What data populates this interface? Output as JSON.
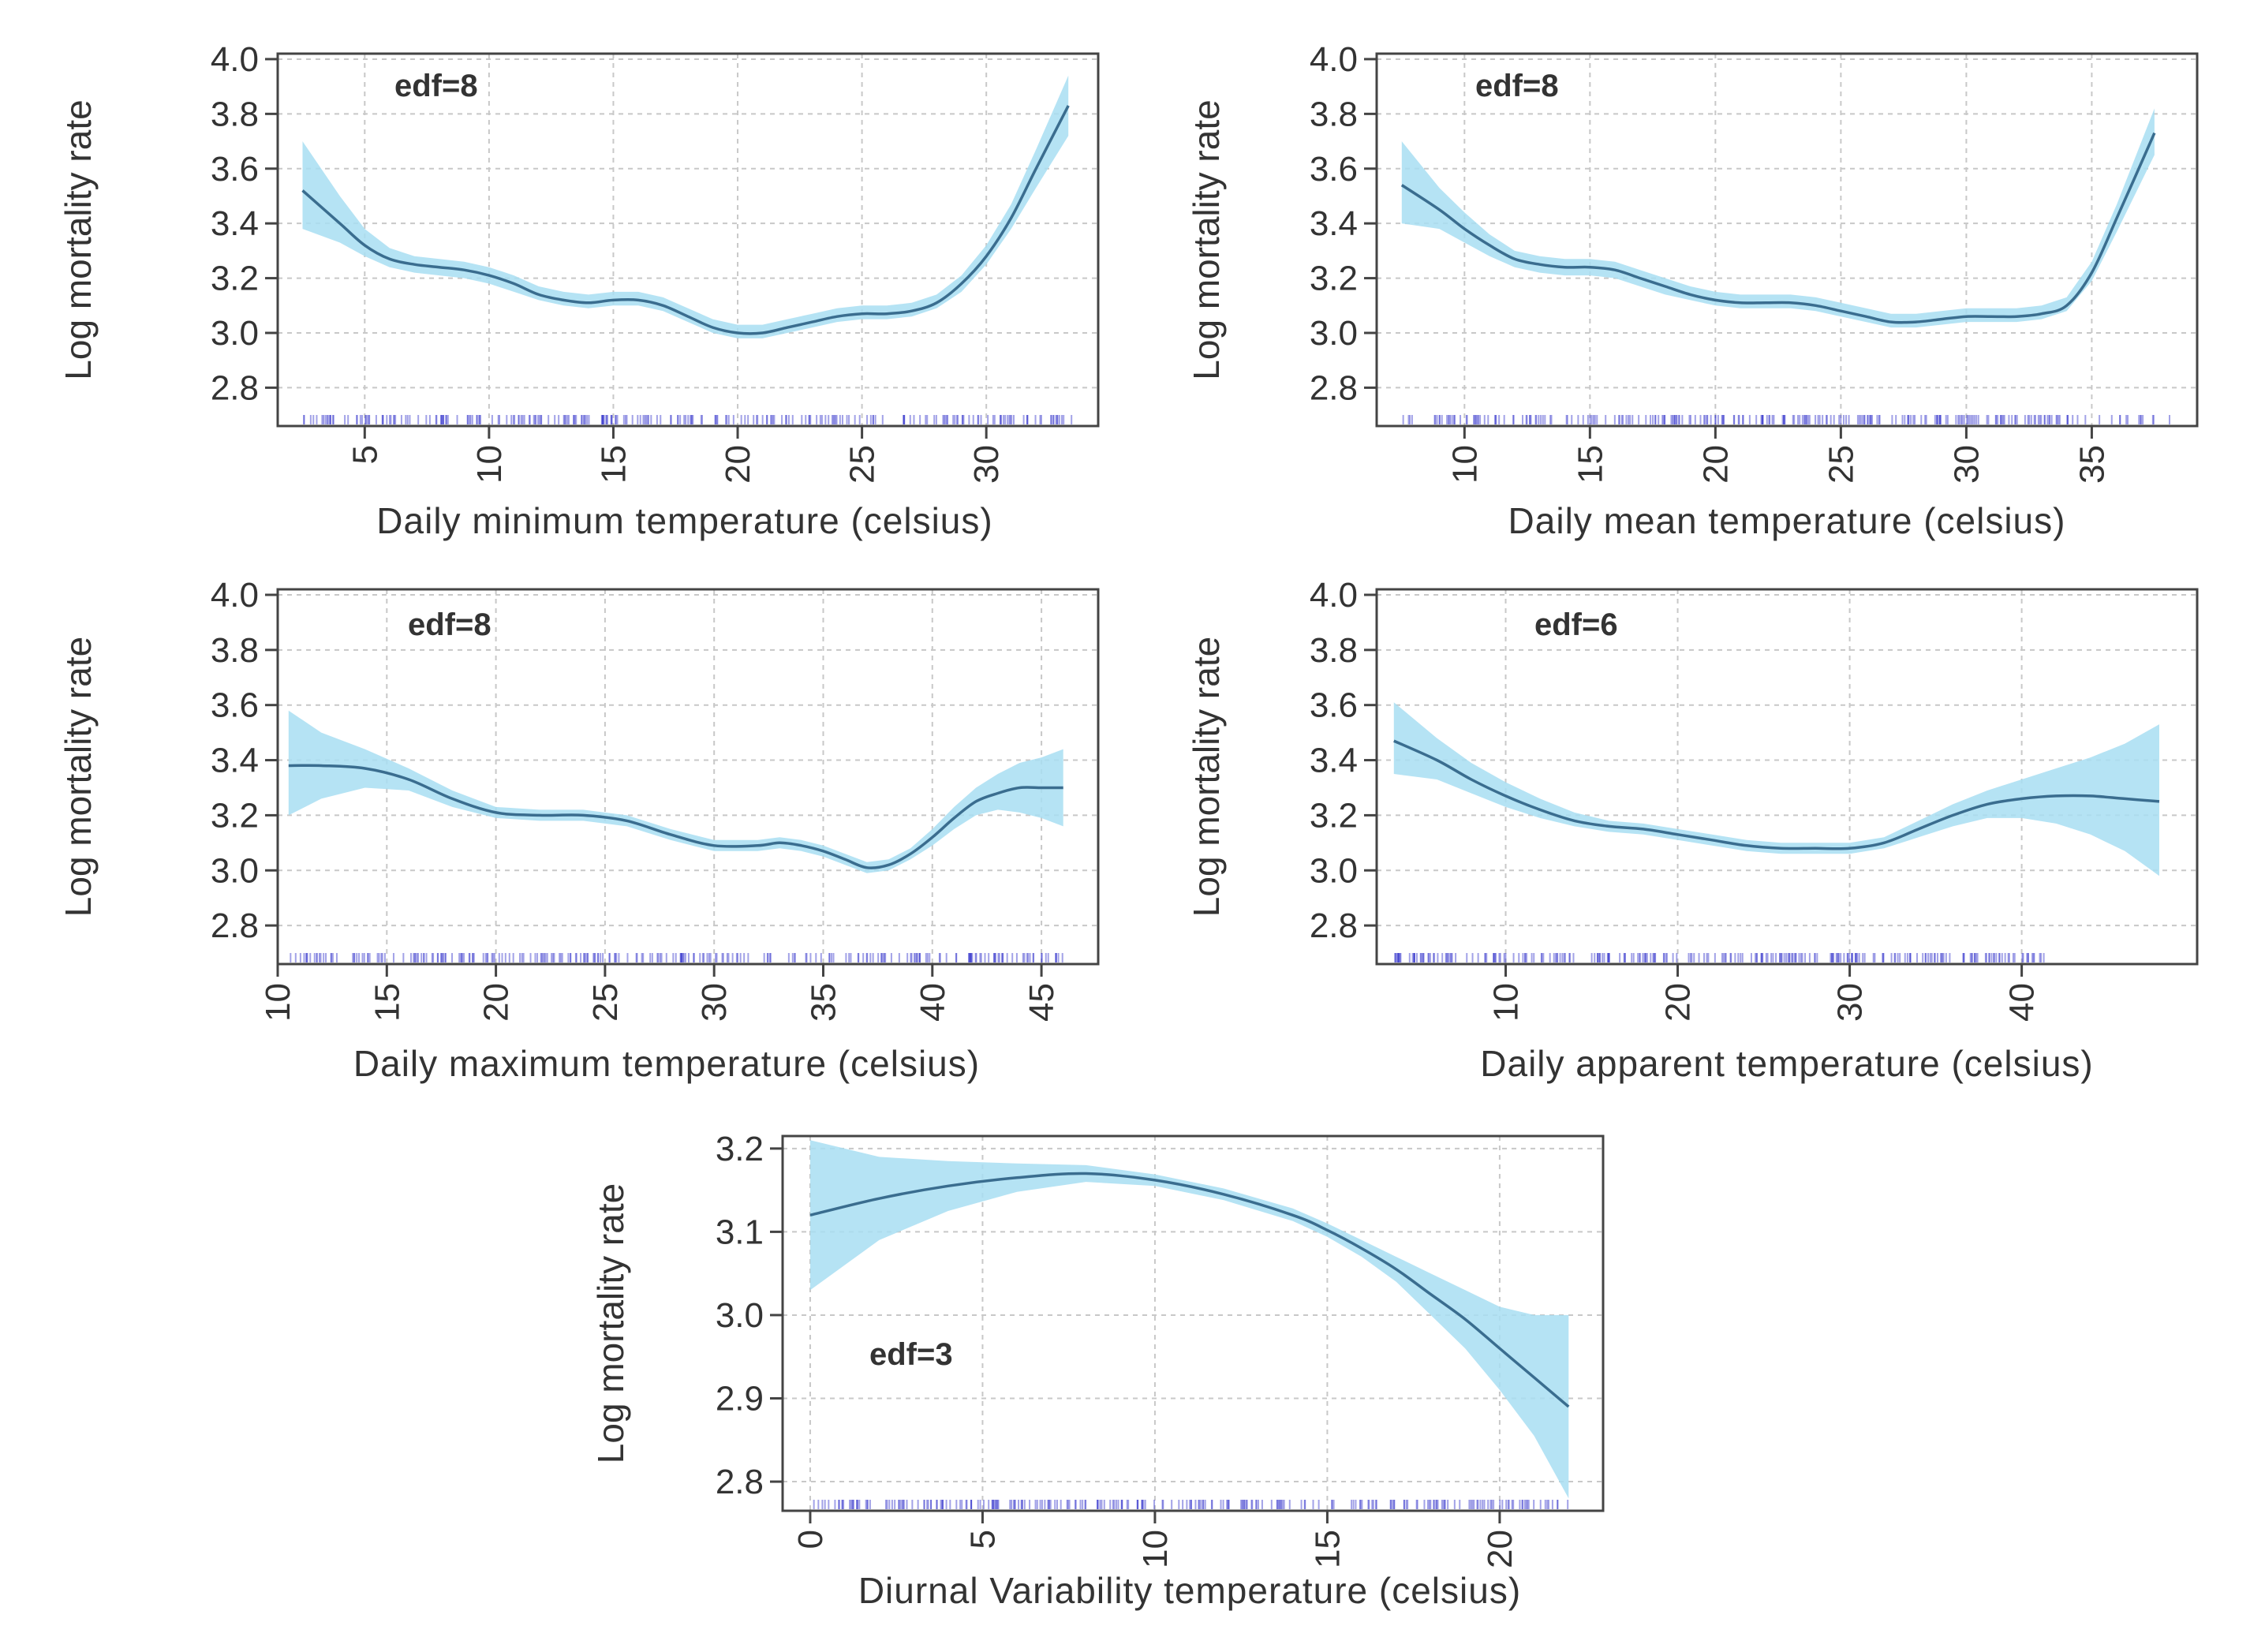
{
  "chart_data": [
    {
      "type": "line",
      "title": "",
      "xlabel": "Daily minimum temperature (celsius)",
      "ylabel": "Log mortality rate",
      "annotation": "edf=8",
      "xlim": [
        1.5,
        34.5
      ],
      "ylim": [
        2.66,
        4.02
      ],
      "xticks": [
        5,
        10,
        15,
        20,
        25,
        30
      ],
      "yticks": [
        2.8,
        3.0,
        3.2,
        3.4,
        3.6,
        3.8,
        4.0
      ],
      "ytick_labels": [
        "2.8",
        "3.0",
        "3.2",
        "3.4",
        "3.6",
        "3.8",
        "4.0"
      ],
      "grid": true,
      "x": [
        2.5,
        4,
        5,
        6,
        7,
        8,
        9,
        10,
        11,
        12,
        13,
        14,
        15,
        16,
        17,
        18,
        19,
        20,
        21,
        22,
        23,
        24,
        25,
        26,
        27,
        28,
        29,
        30,
        31,
        32,
        33.3
      ],
      "y": [
        3.52,
        3.4,
        3.32,
        3.27,
        3.25,
        3.24,
        3.23,
        3.21,
        3.18,
        3.14,
        3.12,
        3.11,
        3.12,
        3.12,
        3.1,
        3.06,
        3.02,
        3.0,
        3.0,
        3.02,
        3.04,
        3.06,
        3.07,
        3.07,
        3.08,
        3.11,
        3.18,
        3.28,
        3.42,
        3.6,
        3.83
      ],
      "lower": [
        3.38,
        3.33,
        3.28,
        3.24,
        3.22,
        3.21,
        3.2,
        3.18,
        3.15,
        3.12,
        3.1,
        3.09,
        3.1,
        3.1,
        3.08,
        3.04,
        3.0,
        2.98,
        2.98,
        3.0,
        3.02,
        3.04,
        3.05,
        3.05,
        3.06,
        3.09,
        3.15,
        3.25,
        3.38,
        3.53,
        3.72
      ],
      "upper": [
        3.7,
        3.5,
        3.38,
        3.31,
        3.28,
        3.27,
        3.26,
        3.24,
        3.21,
        3.17,
        3.15,
        3.14,
        3.15,
        3.15,
        3.13,
        3.09,
        3.05,
        3.03,
        3.03,
        3.05,
        3.07,
        3.09,
        3.1,
        3.1,
        3.11,
        3.14,
        3.21,
        3.32,
        3.47,
        3.67,
        3.94
      ],
      "rug_range": [
        2.5,
        33.5
      ]
    },
    {
      "type": "line",
      "title": "",
      "xlabel": "Daily  mean temperature (celsius)",
      "ylabel": "Log mortality rate",
      "annotation": "edf=8",
      "xlim": [
        6.5,
        39.2
      ],
      "ylim": [
        2.66,
        4.02
      ],
      "xticks": [
        10,
        15,
        20,
        25,
        30,
        35
      ],
      "yticks": [
        2.8,
        3.0,
        3.2,
        3.4,
        3.6,
        3.8,
        4.0
      ],
      "ytick_labels": [
        "2.8",
        "3.0",
        "3.2",
        "3.4",
        "3.6",
        "3.8",
        "4.0"
      ],
      "grid": true,
      "x": [
        7.5,
        9,
        10,
        11,
        12,
        13,
        14,
        15,
        16,
        17,
        18,
        19,
        20,
        21,
        22,
        23,
        24,
        25,
        26,
        27,
        28,
        29,
        30,
        31,
        32,
        33,
        34,
        35,
        36,
        37.5
      ],
      "y": [
        3.54,
        3.45,
        3.38,
        3.32,
        3.27,
        3.25,
        3.24,
        3.24,
        3.23,
        3.2,
        3.17,
        3.14,
        3.12,
        3.11,
        3.11,
        3.11,
        3.1,
        3.08,
        3.06,
        3.04,
        3.04,
        3.05,
        3.06,
        3.06,
        3.06,
        3.07,
        3.1,
        3.22,
        3.42,
        3.73
      ],
      "lower": [
        3.4,
        3.38,
        3.33,
        3.28,
        3.24,
        3.22,
        3.21,
        3.21,
        3.2,
        3.17,
        3.14,
        3.12,
        3.1,
        3.09,
        3.09,
        3.09,
        3.08,
        3.06,
        3.04,
        3.02,
        3.02,
        3.03,
        3.04,
        3.04,
        3.04,
        3.05,
        3.08,
        3.19,
        3.37,
        3.65
      ],
      "upper": [
        3.7,
        3.53,
        3.44,
        3.36,
        3.3,
        3.28,
        3.27,
        3.27,
        3.26,
        3.23,
        3.2,
        3.17,
        3.15,
        3.14,
        3.14,
        3.14,
        3.13,
        3.11,
        3.09,
        3.07,
        3.07,
        3.08,
        3.09,
        3.09,
        3.09,
        3.1,
        3.13,
        3.26,
        3.47,
        3.82
      ],
      "rug_range": [
        7.5,
        38.5
      ]
    },
    {
      "type": "line",
      "title": "",
      "xlabel": "Daily maximum temperature (celsius)",
      "ylabel": "Log mortality rate",
      "annotation": "edf=8",
      "xlim": [
        10.0,
        47.6
      ],
      "ylim": [
        2.66,
        4.02
      ],
      "xticks": [
        10,
        15,
        20,
        25,
        30,
        35,
        40,
        45
      ],
      "yticks": [
        2.8,
        3.0,
        3.2,
        3.4,
        3.6,
        3.8,
        4.0
      ],
      "ytick_labels": [
        "2.8",
        "3.0",
        "3.2",
        "3.4",
        "3.6",
        "3.8",
        "4.0"
      ],
      "grid": true,
      "x": [
        10.5,
        12,
        14,
        16,
        18,
        20,
        22,
        24,
        26,
        28,
        30,
        32,
        33,
        34,
        35,
        36,
        37,
        38,
        39,
        40,
        41,
        42,
        43,
        44,
        45,
        46
      ],
      "y": [
        3.38,
        3.38,
        3.37,
        3.33,
        3.26,
        3.21,
        3.2,
        3.2,
        3.18,
        3.13,
        3.09,
        3.09,
        3.1,
        3.09,
        3.07,
        3.04,
        3.01,
        3.02,
        3.06,
        3.12,
        3.19,
        3.25,
        3.28,
        3.3,
        3.3,
        3.3
      ],
      "lower": [
        3.2,
        3.26,
        3.3,
        3.29,
        3.23,
        3.19,
        3.18,
        3.18,
        3.16,
        3.11,
        3.07,
        3.07,
        3.08,
        3.07,
        3.05,
        3.02,
        2.99,
        3.0,
        3.04,
        3.09,
        3.15,
        3.2,
        3.22,
        3.21,
        3.19,
        3.16
      ],
      "upper": [
        3.58,
        3.5,
        3.44,
        3.37,
        3.29,
        3.23,
        3.22,
        3.22,
        3.2,
        3.15,
        3.11,
        3.11,
        3.12,
        3.11,
        3.09,
        3.06,
        3.03,
        3.04,
        3.08,
        3.15,
        3.23,
        3.3,
        3.35,
        3.39,
        3.41,
        3.44
      ],
      "rug_range": [
        10.5,
        46.0
      ]
    },
    {
      "type": "line",
      "title": "",
      "xlabel": "Daily apparent temperature (celsius)",
      "ylabel": "Log mortality rate",
      "annotation": "edf=6",
      "xlim": [
        2.5,
        50.2
      ],
      "ylim": [
        2.66,
        4.02
      ],
      "xticks": [
        10,
        20,
        30,
        40
      ],
      "yticks": [
        2.8,
        3.0,
        3.2,
        3.4,
        3.6,
        3.8,
        4.0
      ],
      "ytick_labels": [
        "2.8",
        "3.0",
        "3.2",
        "3.4",
        "3.6",
        "3.8",
        "4.0"
      ],
      "grid": true,
      "x": [
        3.5,
        6,
        8,
        10,
        12,
        14,
        16,
        18,
        20,
        22,
        24,
        26,
        28,
        30,
        32,
        34,
        36,
        38,
        40,
        42,
        44,
        46,
        48
      ],
      "y": [
        3.47,
        3.4,
        3.33,
        3.27,
        3.22,
        3.18,
        3.16,
        3.15,
        3.13,
        3.11,
        3.09,
        3.08,
        3.08,
        3.08,
        3.1,
        3.15,
        3.2,
        3.24,
        3.26,
        3.27,
        3.27,
        3.26,
        3.25
      ],
      "lower": [
        3.35,
        3.33,
        3.28,
        3.23,
        3.19,
        3.16,
        3.14,
        3.13,
        3.11,
        3.09,
        3.07,
        3.06,
        3.06,
        3.06,
        3.08,
        3.12,
        3.16,
        3.19,
        3.19,
        3.17,
        3.13,
        3.07,
        2.98
      ],
      "upper": [
        3.61,
        3.48,
        3.39,
        3.32,
        3.26,
        3.21,
        3.18,
        3.17,
        3.15,
        3.13,
        3.11,
        3.1,
        3.1,
        3.1,
        3.12,
        3.18,
        3.24,
        3.29,
        3.33,
        3.37,
        3.41,
        3.46,
        3.53
      ],
      "rug_range": [
        3.5,
        42.0
      ]
    },
    {
      "type": "line",
      "title": "",
      "xlabel": "Diurnal Variability  temperature (celsius)",
      "ylabel": "Log mortality rate",
      "annotation": "edf=3",
      "xlim": [
        -0.8,
        23.0
      ],
      "ylim": [
        2.765,
        3.215
      ],
      "xticks": [
        0,
        5,
        10,
        15,
        20
      ],
      "yticks": [
        2.8,
        2.9,
        3.0,
        3.1,
        3.2
      ],
      "ytick_labels": [
        "2.8",
        "2.9",
        "3.0",
        "3.1",
        "3.2"
      ],
      "grid": true,
      "x": [
        0,
        2,
        4,
        6,
        8,
        10,
        12,
        14,
        15,
        16,
        17,
        18,
        19,
        20,
        21,
        22
      ],
      "y": [
        3.12,
        3.14,
        3.155,
        3.165,
        3.17,
        3.162,
        3.145,
        3.12,
        3.102,
        3.08,
        3.055,
        3.025,
        2.995,
        2.96,
        2.925,
        2.89
      ],
      "lower": [
        3.03,
        3.09,
        3.125,
        3.148,
        3.16,
        3.155,
        3.138,
        3.113,
        3.094,
        3.07,
        3.04,
        3.0,
        2.96,
        2.91,
        2.855,
        2.78
      ],
      "upper": [
        3.21,
        3.19,
        3.185,
        3.182,
        3.18,
        3.169,
        3.152,
        3.128,
        3.11,
        3.09,
        3.07,
        3.05,
        3.03,
        3.01,
        3.0,
        3.0
      ],
      "rug_range": [
        0,
        22.0
      ]
    }
  ]
}
